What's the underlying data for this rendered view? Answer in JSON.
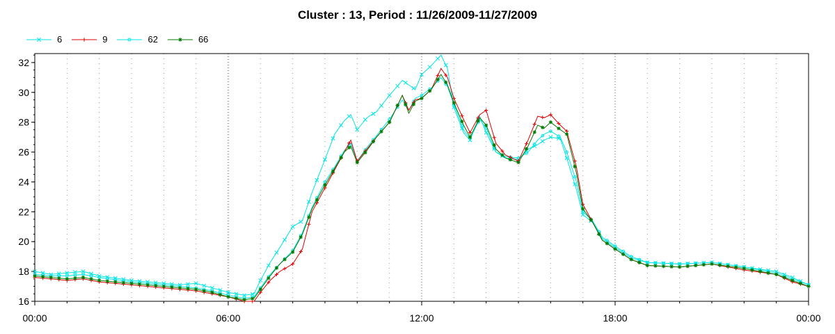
{
  "chart_data": {
    "type": "line",
    "title": "Cluster : 13, Period : 11/26/2009-11/27/2009",
    "xlabel": "",
    "ylabel": "",
    "x_unit": "hours since 00:00",
    "xlim": [
      0,
      24
    ],
    "ylim": [
      16,
      32.6
    ],
    "x_ticks": [
      0,
      6,
      12,
      18,
      24
    ],
    "x_tick_labels": [
      "00:00",
      "06:00",
      "12:00",
      "18:00",
      "00:00"
    ],
    "y_ticks": [
      16,
      18,
      20,
      22,
      24,
      26,
      28,
      30,
      32
    ],
    "grid": "dotted vertical",
    "legend_position": "top-left",
    "series": [
      {
        "name": "6",
        "color": "#00e5e5",
        "marker": "x",
        "points": [
          [
            0,
            18.0
          ],
          [
            0.5,
            17.8
          ],
          [
            1.0,
            17.9
          ],
          [
            1.5,
            18.0
          ],
          [
            2.0,
            17.7
          ],
          [
            3.0,
            17.4
          ],
          [
            4.0,
            17.2
          ],
          [
            4.5,
            17.1
          ],
          [
            5.0,
            17.2
          ],
          [
            5.5,
            16.9
          ],
          [
            6.0,
            16.6
          ],
          [
            6.5,
            16.4
          ],
          [
            6.8,
            16.5
          ],
          [
            7.0,
            17.4
          ],
          [
            7.3,
            18.6
          ],
          [
            7.6,
            19.6
          ],
          [
            8.0,
            21.0
          ],
          [
            8.3,
            21.4
          ],
          [
            8.6,
            23.3
          ],
          [
            9.0,
            25.5
          ],
          [
            9.3,
            27.2
          ],
          [
            9.6,
            28.1
          ],
          [
            9.8,
            28.5
          ],
          [
            10.0,
            27.5
          ],
          [
            10.3,
            28.3
          ],
          [
            10.6,
            28.7
          ],
          [
            11.0,
            29.8
          ],
          [
            11.4,
            30.8
          ],
          [
            11.6,
            30.5
          ],
          [
            11.8,
            30.2
          ],
          [
            12.0,
            31.2
          ],
          [
            12.3,
            31.8
          ],
          [
            12.6,
            32.5
          ],
          [
            12.8,
            31.6
          ],
          [
            13.0,
            29.0
          ],
          [
            13.3,
            27.3
          ],
          [
            13.5,
            26.8
          ],
          [
            13.8,
            28.4
          ],
          [
            14.0,
            27.3
          ],
          [
            14.3,
            26.0
          ],
          [
            14.6,
            25.6
          ],
          [
            15.0,
            25.5
          ],
          [
            15.3,
            26.2
          ],
          [
            15.6,
            26.5
          ],
          [
            15.8,
            26.8
          ],
          [
            16.0,
            27.0
          ],
          [
            16.3,
            26.9
          ],
          [
            16.5,
            25.6
          ],
          [
            16.8,
            23.5
          ],
          [
            17.0,
            21.8
          ],
          [
            17.3,
            21.3
          ],
          [
            17.6,
            20.2
          ],
          [
            18.0,
            19.6
          ],
          [
            18.5,
            18.9
          ],
          [
            19.0,
            18.6
          ],
          [
            20.0,
            18.5
          ],
          [
            21.0,
            18.6
          ],
          [
            22.0,
            18.3
          ],
          [
            23.0,
            18.0
          ],
          [
            23.5,
            17.6
          ],
          [
            24.0,
            17.1
          ]
        ]
      },
      {
        "name": "9",
        "color": "#e00000",
        "marker": "+",
        "points": [
          [
            0,
            17.6
          ],
          [
            0.5,
            17.5
          ],
          [
            1.0,
            17.4
          ],
          [
            1.5,
            17.5
          ],
          [
            2.0,
            17.3
          ],
          [
            3.0,
            17.1
          ],
          [
            4.0,
            16.9
          ],
          [
            4.5,
            16.8
          ],
          [
            5.0,
            16.7
          ],
          [
            5.5,
            16.5
          ],
          [
            6.0,
            16.3
          ],
          [
            6.5,
            16.0
          ],
          [
            6.8,
            16.0
          ],
          [
            7.0,
            16.6
          ],
          [
            7.3,
            17.4
          ],
          [
            7.6,
            18.0
          ],
          [
            8.0,
            18.5
          ],
          [
            8.3,
            19.5
          ],
          [
            8.6,
            22.0
          ],
          [
            9.0,
            23.6
          ],
          [
            9.3,
            24.8
          ],
          [
            9.6,
            26.0
          ],
          [
            9.8,
            26.8
          ],
          [
            10.0,
            25.4
          ],
          [
            10.3,
            26.2
          ],
          [
            10.6,
            27.0
          ],
          [
            11.0,
            28.0
          ],
          [
            11.4,
            29.8
          ],
          [
            11.6,
            28.8
          ],
          [
            11.8,
            29.5
          ],
          [
            12.0,
            29.6
          ],
          [
            12.3,
            30.2
          ],
          [
            12.6,
            31.6
          ],
          [
            12.8,
            31.0
          ],
          [
            13.0,
            29.6
          ],
          [
            13.3,
            28.2
          ],
          [
            13.5,
            27.3
          ],
          [
            13.8,
            28.5
          ],
          [
            14.0,
            28.8
          ],
          [
            14.3,
            26.6
          ],
          [
            14.6,
            25.8
          ],
          [
            15.0,
            25.4
          ],
          [
            15.3,
            26.8
          ],
          [
            15.6,
            28.4
          ],
          [
            15.8,
            28.3
          ],
          [
            16.0,
            28.5
          ],
          [
            16.3,
            27.8
          ],
          [
            16.5,
            27.4
          ],
          [
            16.8,
            25.0
          ],
          [
            17.0,
            22.5
          ],
          [
            17.3,
            21.3
          ],
          [
            17.6,
            20.1
          ],
          [
            18.0,
            19.5
          ],
          [
            18.5,
            18.8
          ],
          [
            19.0,
            18.4
          ],
          [
            20.0,
            18.3
          ],
          [
            21.0,
            18.5
          ],
          [
            22.0,
            18.1
          ],
          [
            23.0,
            17.8
          ],
          [
            23.5,
            17.3
          ],
          [
            24.0,
            17.0
          ]
        ]
      },
      {
        "name": "62",
        "color": "#00e5e5",
        "marker": "o",
        "points": [
          [
            0,
            17.8
          ],
          [
            0.5,
            17.7
          ],
          [
            1.0,
            17.7
          ],
          [
            1.5,
            17.8
          ],
          [
            2.0,
            17.6
          ],
          [
            3.0,
            17.3
          ],
          [
            4.0,
            17.1
          ],
          [
            4.5,
            17.0
          ],
          [
            5.0,
            16.9
          ],
          [
            5.5,
            16.7
          ],
          [
            6.0,
            16.4
          ],
          [
            6.5,
            16.2
          ],
          [
            6.8,
            16.3
          ],
          [
            7.0,
            16.9
          ],
          [
            7.3,
            17.8
          ],
          [
            7.6,
            18.5
          ],
          [
            8.0,
            19.4
          ],
          [
            8.3,
            20.6
          ],
          [
            8.6,
            22.3
          ],
          [
            9.0,
            24.0
          ],
          [
            9.3,
            25.0
          ],
          [
            9.6,
            26.1
          ],
          [
            9.8,
            26.6
          ],
          [
            10.0,
            25.4
          ],
          [
            10.3,
            26.3
          ],
          [
            10.6,
            27.1
          ],
          [
            11.0,
            28.2
          ],
          [
            11.4,
            29.5
          ],
          [
            11.6,
            28.8
          ],
          [
            11.8,
            29.6
          ],
          [
            12.0,
            29.8
          ],
          [
            12.3,
            30.3
          ],
          [
            12.6,
            31.0
          ],
          [
            12.8,
            30.4
          ],
          [
            13.0,
            29.2
          ],
          [
            13.3,
            27.5
          ],
          [
            13.5,
            26.9
          ],
          [
            13.8,
            28.2
          ],
          [
            14.0,
            27.6
          ],
          [
            14.3,
            26.0
          ],
          [
            14.6,
            25.7
          ],
          [
            15.0,
            25.6
          ],
          [
            15.3,
            26.0
          ],
          [
            15.6,
            26.8
          ],
          [
            15.8,
            27.2
          ],
          [
            16.0,
            27.4
          ],
          [
            16.3,
            27.0
          ],
          [
            16.5,
            26.0
          ],
          [
            16.8,
            24.0
          ],
          [
            17.0,
            22.0
          ],
          [
            17.3,
            21.4
          ],
          [
            17.6,
            20.3
          ],
          [
            18.0,
            19.7
          ],
          [
            18.5,
            19.0
          ],
          [
            19.0,
            18.6
          ],
          [
            20.0,
            18.5
          ],
          [
            21.0,
            18.6
          ],
          [
            22.0,
            18.3
          ],
          [
            23.0,
            17.9
          ],
          [
            23.5,
            17.5
          ],
          [
            24.0,
            17.1
          ]
        ]
      },
      {
        "name": "66",
        "color": "#007a00",
        "marker": "*",
        "points": [
          [
            0,
            17.7
          ],
          [
            0.5,
            17.6
          ],
          [
            1.0,
            17.5
          ],
          [
            1.5,
            17.6
          ],
          [
            2.0,
            17.4
          ],
          [
            3.0,
            17.2
          ],
          [
            4.0,
            17.0
          ],
          [
            4.5,
            16.9
          ],
          [
            5.0,
            16.8
          ],
          [
            5.5,
            16.6
          ],
          [
            6.0,
            16.3
          ],
          [
            6.5,
            16.1
          ],
          [
            6.8,
            16.2
          ],
          [
            7.0,
            16.8
          ],
          [
            7.3,
            17.7
          ],
          [
            7.6,
            18.5
          ],
          [
            8.0,
            19.3
          ],
          [
            8.3,
            20.5
          ],
          [
            8.6,
            22.2
          ],
          [
            9.0,
            23.8
          ],
          [
            9.3,
            24.9
          ],
          [
            9.6,
            26.0
          ],
          [
            9.8,
            26.4
          ],
          [
            10.0,
            25.3
          ],
          [
            10.3,
            26.1
          ],
          [
            10.6,
            27.0
          ],
          [
            11.0,
            28.0
          ],
          [
            11.4,
            29.8
          ],
          [
            11.6,
            28.6
          ],
          [
            11.8,
            29.4
          ],
          [
            12.0,
            29.6
          ],
          [
            12.3,
            30.2
          ],
          [
            12.6,
            31.2
          ],
          [
            12.8,
            30.5
          ],
          [
            13.0,
            29.3
          ],
          [
            13.3,
            27.8
          ],
          [
            13.5,
            27.0
          ],
          [
            13.8,
            28.3
          ],
          [
            14.0,
            27.8
          ],
          [
            14.3,
            26.2
          ],
          [
            14.6,
            25.6
          ],
          [
            15.0,
            25.3
          ],
          [
            15.3,
            26.4
          ],
          [
            15.6,
            27.8
          ],
          [
            15.8,
            27.6
          ],
          [
            16.0,
            28.0
          ],
          [
            16.3,
            27.5
          ],
          [
            16.5,
            27.2
          ],
          [
            16.8,
            24.6
          ],
          [
            17.0,
            22.2
          ],
          [
            17.3,
            21.3
          ],
          [
            17.6,
            20.1
          ],
          [
            18.0,
            19.5
          ],
          [
            18.5,
            18.8
          ],
          [
            19.0,
            18.4
          ],
          [
            20.0,
            18.3
          ],
          [
            21.0,
            18.5
          ],
          [
            22.0,
            18.2
          ],
          [
            23.0,
            17.8
          ],
          [
            23.5,
            17.4
          ],
          [
            24.0,
            17.0
          ]
        ]
      }
    ]
  }
}
